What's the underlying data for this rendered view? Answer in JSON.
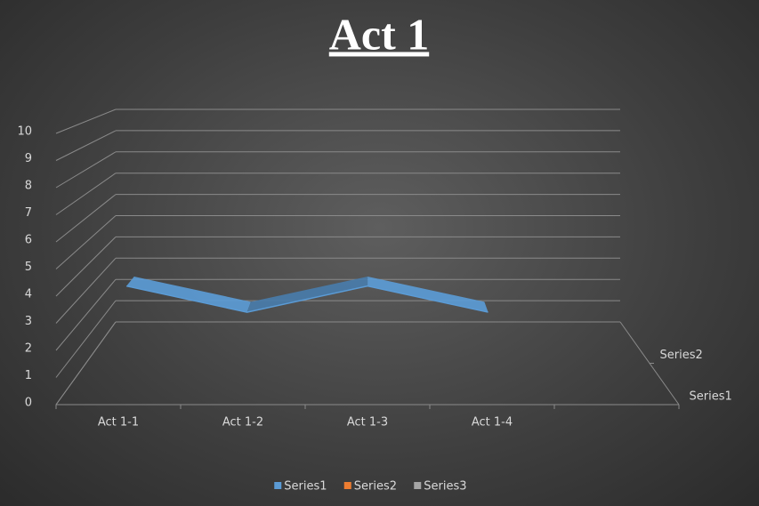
{
  "chart_data": {
    "type": "line3d",
    "title": "Act 1",
    "categories": [
      "Act 1-1",
      "Act 1-2",
      "Act 1-3",
      "Act 1-4",
      null
    ],
    "series": [
      {
        "name": "Series1",
        "color": "#5b9bd5",
        "values": [
          4,
          3,
          4,
          3,
          null
        ]
      },
      {
        "name": "Series2",
        "color": "#ed7d31",
        "values": [
          null,
          null,
          null,
          null,
          null
        ]
      },
      {
        "name": "Series3",
        "color": "#a5a5a5",
        "values": [
          null,
          null,
          null,
          null,
          null
        ]
      }
    ],
    "ylim": [
      0,
      10
    ],
    "yticks": [
      0,
      1,
      2,
      3,
      4,
      5,
      6,
      7,
      8,
      9,
      10
    ],
    "grid": true,
    "legend": "bottom"
  }
}
